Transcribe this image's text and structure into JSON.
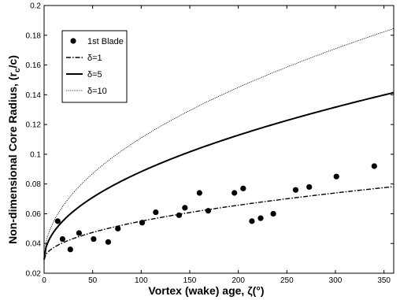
{
  "chart_data": {
    "type": "line",
    "xlabel": "Vortex (wake) age, ζ(°)",
    "ylabel_main": "Non-dimensional Core Radius, (r",
    "ylabel_sub": "c",
    "ylabel_tail": "/c)",
    "xlim": [
      0,
      360
    ],
    "ylim": [
      0.02,
      0.2
    ],
    "xticks": [
      0,
      50,
      100,
      150,
      200,
      250,
      300,
      350
    ],
    "yticks": [
      0.02,
      0.04,
      0.06,
      0.08,
      0.1,
      0.12,
      0.14,
      0.16,
      0.18,
      0.2
    ],
    "xtick_labels": [
      "0",
      "50",
      "100",
      "150",
      "200",
      "250",
      "300",
      "350"
    ],
    "ytick_labels": [
      "0.02",
      "0.04",
      "0.06",
      "0.08",
      "0.1",
      "0.12",
      "0.14",
      "0.16",
      "0.18",
      "0.2"
    ],
    "grid": false,
    "legend_position": "top-left",
    "scatter": {
      "name": "1st Blade",
      "points": [
        [
          14,
          0.055
        ],
        [
          19,
          0.043
        ],
        [
          27,
          0.036
        ],
        [
          36,
          0.047
        ],
        [
          51,
          0.043
        ],
        [
          66,
          0.041
        ],
        [
          76,
          0.05
        ],
        [
          101,
          0.054
        ],
        [
          115,
          0.061
        ],
        [
          139,
          0.059
        ],
        [
          145,
          0.064
        ],
        [
          160,
          0.074
        ],
        [
          169,
          0.062
        ],
        [
          196,
          0.074
        ],
        [
          205,
          0.077
        ],
        [
          214,
          0.055
        ],
        [
          223,
          0.057
        ],
        [
          236,
          0.06
        ],
        [
          259,
          0.076
        ],
        [
          273,
          0.078
        ],
        [
          301,
          0.085
        ],
        [
          340,
          0.092
        ]
      ]
    },
    "series": [
      {
        "name": "δ=1",
        "style": "dashdot",
        "width": 1.4,
        "k": 0.00259
      },
      {
        "name": "δ=5",
        "style": "solid",
        "width": 2.0,
        "k": 0.00592
      },
      {
        "name": "δ=10",
        "style": "dotted",
        "width": 0.8,
        "k": 0.00819
      }
    ],
    "model": {
      "r0": 0.0291,
      "exponent": 0.5
    }
  }
}
